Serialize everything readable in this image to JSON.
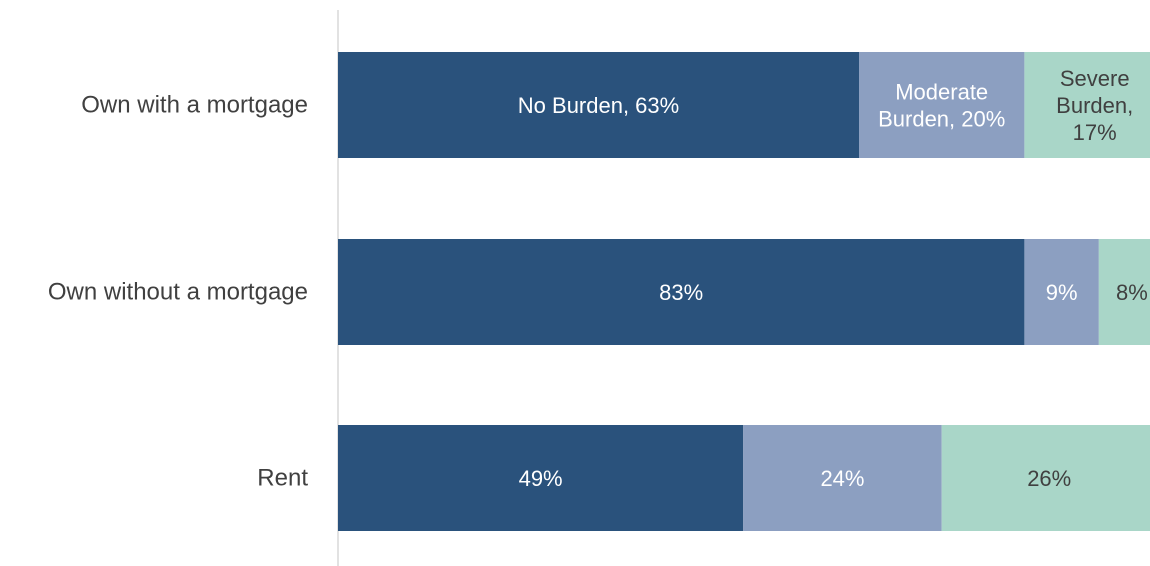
{
  "chart_data": {
    "type": "bar",
    "orientation": "horizontal",
    "stacked": true,
    "categories": [
      "Own with a mortgage",
      "Own without a mortgage",
      "Rent"
    ],
    "series": [
      {
        "values": [
          63,
          83,
          49
        ],
        "color": "#2a527c",
        "label_color": "#ffffff"
      },
      {
        "values": [
          20,
          9,
          24
        ],
        "color": "#8c9fc1",
        "label_color": "#ffffff"
      },
      {
        "values": [
          17,
          8,
          26
        ],
        "color": "#a9d6c8",
        "label_color": "#404040"
      }
    ],
    "data_labels": [
      [
        [
          "No Burden, 63%"
        ],
        [
          "Moderate",
          "Burden, 20%"
        ],
        [
          "Severe",
          "Burden,",
          "17%"
        ]
      ],
      [
        [
          "83%"
        ],
        [
          "9%"
        ],
        [
          "8%"
        ]
      ],
      [
        [
          "49%"
        ],
        [
          "24%"
        ],
        [
          "26%"
        ]
      ]
    ],
    "xlim": [
      0,
      100
    ],
    "grid": false,
    "legend": "none"
  }
}
